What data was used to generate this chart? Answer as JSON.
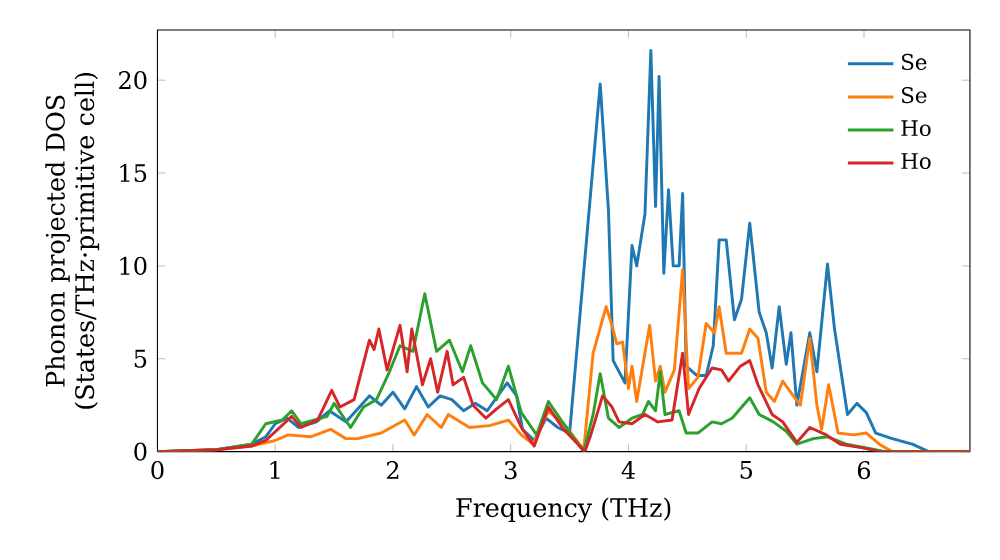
{
  "chart_data": {
    "type": "line",
    "xlabel": "Frequency (THz)",
    "ylabel": "Phonon projected DOS (States/THz·primitive cell)",
    "xlim": [
      0,
      6.9
    ],
    "ylim": [
      0,
      22.7
    ],
    "xticks": [
      0,
      1,
      2,
      3,
      4,
      5,
      6
    ],
    "yticks": [
      0,
      5,
      10,
      15,
      20
    ],
    "legend": "top right",
    "line_style": "solid",
    "series": [
      {
        "name": "Se",
        "color": "#1f77b4",
        "x": [
          0,
          0.5,
          0.8,
          0.92,
          1.0,
          1.1,
          1.2,
          1.35,
          1.46,
          1.6,
          1.7,
          1.8,
          1.9,
          2.0,
          2.1,
          2.2,
          2.3,
          2.4,
          2.5,
          2.6,
          2.7,
          2.8,
          2.97,
          3.05,
          3.1,
          3.2,
          3.3,
          3.4,
          3.5,
          3.62,
          3.76,
          3.83,
          3.87,
          3.97,
          4.03,
          4.07,
          4.14,
          4.19,
          4.23,
          4.26,
          4.3,
          4.34,
          4.38,
          4.43,
          4.46,
          4.49,
          4.58,
          4.66,
          4.72,
          4.77,
          4.83,
          4.9,
          4.96,
          5.03,
          5.11,
          5.17,
          5.22,
          5.28,
          5.34,
          5.38,
          5.43,
          5.54,
          5.6,
          5.69,
          5.75,
          5.86,
          5.94,
          6.02,
          6.1,
          6.24,
          6.41,
          6.55,
          6.9
        ],
        "values": [
          0,
          0.1,
          0.4,
          0.8,
          1.5,
          1.8,
          1.3,
          1.6,
          2.2,
          1.6,
          2.3,
          3.0,
          2.5,
          3.2,
          2.3,
          3.5,
          2.4,
          3.0,
          2.8,
          2.2,
          2.6,
          2.2,
          3.7,
          3.0,
          1.2,
          0.6,
          1.8,
          1.3,
          1.0,
          null,
          19.8,
          13,
          4.9,
          3.7,
          11.1,
          10,
          12.8,
          21.6,
          13.2,
          20.2,
          9.6,
          14.1,
          10,
          10,
          13.9,
          4.6,
          4.1,
          4.1,
          5.7,
          11.4,
          11.4,
          7.1,
          8.2,
          12.3,
          7.5,
          6.4,
          4.5,
          7.8,
          4.7,
          6.4,
          2.5,
          6.4,
          4.3,
          10.1,
          6.6,
          2.0,
          2.6,
          2.1,
          1.0,
          0.7,
          0.4,
          0,
          0
        ]
      },
      {
        "name": "Se",
        "color": "#ff7f0e",
        "x": [
          0,
          0.5,
          0.8,
          1.0,
          1.11,
          1.3,
          1.47,
          1.6,
          1.7,
          1.9,
          2.1,
          2.18,
          2.29,
          2.41,
          2.47,
          2.65,
          2.82,
          2.98,
          3.09,
          3.19,
          3.32,
          3.45,
          3.62,
          3.7,
          3.81,
          3.86,
          3.9,
          3.95,
          4.0,
          4.03,
          4.07,
          4.18,
          4.23,
          4.27,
          4.31,
          4.39,
          4.46,
          4.51,
          4.59,
          4.66,
          4.73,
          4.77,
          4.83,
          4.9,
          4.96,
          5.03,
          5.1,
          5.17,
          5.24,
          5.31,
          5.4,
          5.46,
          5.54,
          5.6,
          5.64,
          5.7,
          5.78,
          5.91,
          6.02,
          6.13,
          6.24,
          6.9
        ],
        "values": [
          0,
          0.1,
          0.3,
          0.6,
          0.9,
          0.8,
          1.2,
          0.7,
          0.7,
          1.0,
          1.7,
          0.9,
          2.0,
          1.3,
          2.0,
          1.3,
          1.4,
          1.7,
          0.9,
          0.4,
          2.2,
          1.5,
          0.1,
          5.3,
          7.8,
          6.8,
          5.8,
          5.9,
          3.4,
          4.6,
          2.7,
          6.8,
          3.8,
          4.6,
          3.2,
          4.4,
          9.8,
          3.4,
          4.0,
          6.9,
          6.4,
          7.8,
          5.3,
          5.3,
          5.3,
          6.6,
          6.1,
          3.2,
          2.7,
          3.8,
          3.0,
          2.5,
          6.1,
          2.5,
          1.2,
          3.6,
          1.0,
          0.9,
          1.0,
          0.4,
          0,
          0
        ]
      },
      {
        "name": "Ho",
        "color": "#2ca02c",
        "x": [
          0,
          0.5,
          0.8,
          0.92,
          1.06,
          1.14,
          1.22,
          1.33,
          1.44,
          1.5,
          1.64,
          1.75,
          1.86,
          1.97,
          2.06,
          2.17,
          2.27,
          2.37,
          2.48,
          2.59,
          2.66,
          2.76,
          2.88,
          2.98,
          3.09,
          3.22,
          3.32,
          3.45,
          3.62,
          3.7,
          3.76,
          3.83,
          3.92,
          4.03,
          4.12,
          4.17,
          4.23,
          4.27,
          4.31,
          4.43,
          4.49,
          4.59,
          4.71,
          4.79,
          4.88,
          5.03,
          5.11,
          5.23,
          5.34,
          5.43,
          5.57,
          5.69,
          5.85,
          6.02,
          6.18,
          6.9
        ],
        "values": [
          0,
          0.1,
          0.4,
          1.5,
          1.7,
          2.2,
          1.5,
          1.7,
          1.9,
          2.6,
          1.3,
          2.4,
          2.8,
          4.3,
          5.7,
          5.4,
          8.5,
          5.4,
          6.0,
          4.3,
          5.7,
          3.7,
          2.8,
          4.6,
          2.1,
          0.9,
          2.7,
          1.5,
          0,
          2.0,
          4.2,
          1.8,
          1.3,
          1.8,
          2.0,
          2.7,
          2.2,
          4.3,
          2.0,
          2.2,
          1.0,
          1.0,
          1.6,
          1.5,
          1.8,
          2.9,
          2.0,
          1.6,
          1.1,
          0.4,
          0.7,
          0.8,
          0.4,
          0.2,
          0,
          0
        ]
      },
      {
        "name": "Ho",
        "color": "#d62728",
        "x": [
          0,
          0.5,
          0.8,
          0.92,
          1.14,
          1.22,
          1.36,
          1.48,
          1.55,
          1.67,
          1.8,
          1.84,
          1.88,
          1.95,
          2.06,
          2.12,
          2.16,
          2.25,
          2.32,
          2.38,
          2.46,
          2.51,
          2.6,
          2.68,
          2.79,
          2.88,
          2.98,
          3.09,
          3.2,
          3.32,
          3.45,
          3.63,
          3.68,
          3.78,
          3.86,
          3.92,
          4.03,
          4.14,
          4.25,
          4.37,
          4.46,
          4.51,
          4.6,
          4.71,
          4.79,
          4.85,
          4.95,
          5.03,
          5.1,
          5.22,
          5.31,
          5.43,
          5.54,
          5.68,
          5.8,
          5.99,
          6.13,
          6.9
        ],
        "values": [
          0,
          0.1,
          0.3,
          0.6,
          1.9,
          1.3,
          1.7,
          3.3,
          2.4,
          2.8,
          6.0,
          5.5,
          6.6,
          4.4,
          6.8,
          4.3,
          6.6,
          3.6,
          5.0,
          3.2,
          5.4,
          3.6,
          4.0,
          2.5,
          1.8,
          2.3,
          2.8,
          1.3,
          0.3,
          2.4,
          1.2,
          0,
          0.9,
          3.0,
          2.4,
          1.6,
          1.5,
          2.0,
          1.6,
          1.7,
          5.3,
          2.0,
          3.4,
          4.5,
          4.4,
          3.8,
          4.6,
          4.9,
          3.6,
          2.0,
          1.6,
          0.5,
          1.3,
          0.9,
          0.4,
          0.2,
          0,
          0
        ]
      }
    ]
  }
}
